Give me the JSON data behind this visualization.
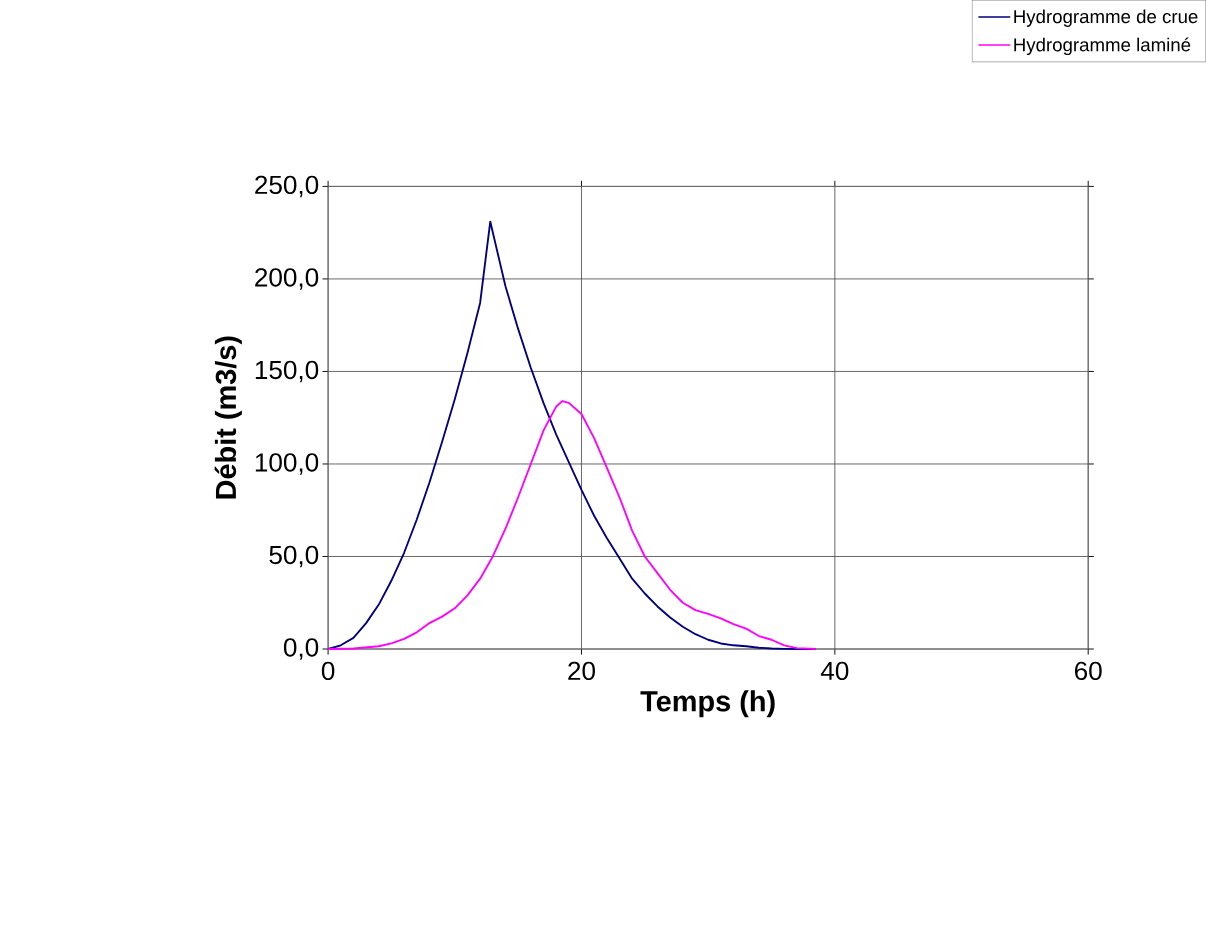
{
  "chart_data": {
    "type": "line",
    "xlabel": "Temps (h)",
    "ylabel": "Débit (m3/s)",
    "xlim": [
      0,
      60
    ],
    "xticks": [
      0,
      20,
      40,
      60
    ],
    "ylim": [
      0,
      250
    ],
    "yticks": [
      {
        "value": 0,
        "label": "0,0"
      },
      {
        "value": 50,
        "label": "50,0"
      },
      {
        "value": 100,
        "label": "100,0"
      },
      {
        "value": 150,
        "label": "150,0"
      },
      {
        "value": 200,
        "label": "200,0"
      },
      {
        "value": 250,
        "label": "250,0"
      }
    ],
    "grid": true,
    "legend": "top right",
    "marker": "none",
    "line_style": "solid",
    "series": [
      {
        "name": "Hydrogramme de crue",
        "color": "#000080",
        "x": [
          0,
          1,
          2,
          3,
          4,
          5,
          6,
          7,
          8,
          9,
          10,
          11,
          12,
          12.8,
          14,
          15,
          16,
          17,
          18,
          19,
          20,
          21,
          22,
          23,
          24,
          25,
          26,
          27,
          28,
          29,
          30,
          31,
          32,
          33,
          34,
          35,
          36,
          37,
          38.5
        ],
        "values": [
          0,
          2,
          6,
          14,
          24,
          37,
          52,
          70,
          90,
          112,
          135,
          160,
          187,
          231,
          196,
          173,
          152,
          133,
          116,
          101,
          86,
          72,
          60,
          49,
          38,
          30,
          23,
          17,
          12,
          8,
          5,
          3,
          2,
          1.5,
          0.7,
          0.3,
          0.1,
          0,
          0
        ]
      },
      {
        "name": "Hydrogramme laminé",
        "color": "#ff00ff",
        "x": [
          0,
          2,
          4,
          5,
          6,
          7,
          8,
          9,
          10,
          11,
          12,
          13,
          14,
          15,
          16,
          17,
          18,
          18.5,
          19,
          20,
          21,
          22,
          23,
          24,
          25,
          26,
          27,
          28,
          29,
          30,
          31,
          32,
          33,
          34,
          35,
          36,
          37,
          38.5
        ],
        "values": [
          0,
          0.3,
          1.5,
          3,
          5.5,
          9,
          14,
          17.5,
          22,
          29,
          38,
          50,
          65,
          82,
          100,
          118,
          131,
          134,
          133,
          127,
          114,
          98,
          82,
          64,
          50,
          41,
          32,
          25,
          21,
          19,
          16.5,
          13.5,
          11,
          7,
          5,
          2,
          0.5,
          0
        ]
      }
    ]
  }
}
